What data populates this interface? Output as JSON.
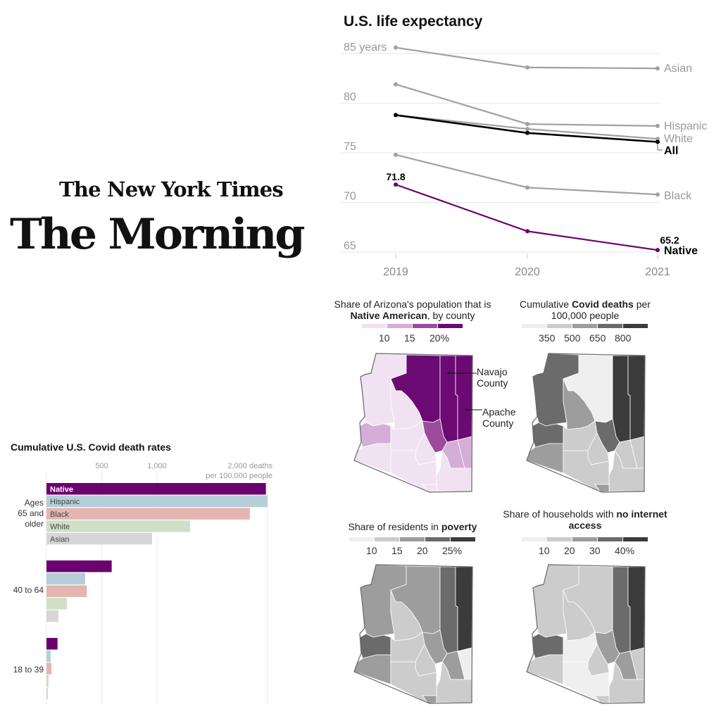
{
  "branding": {
    "masthead": "The New York Times",
    "newsletter": "The Morning"
  },
  "colors": {
    "native": "#6b006f",
    "hispanic": "#b5cfd8",
    "black": "#e5b5b2",
    "white": "#cfe0c6",
    "asian": "#d6d6d6",
    "grey_line": "#a0a0a0",
    "all_line": "#000000"
  },
  "chart_data": [
    {
      "type": "line",
      "title": "U.S. life expectancy",
      "x": [
        2019,
        2020,
        2021
      ],
      "x_tick_labels": [
        "2019",
        "2020",
        "2021"
      ],
      "y_tick_labels": [
        "85 years",
        "80",
        "75",
        "70",
        "65"
      ],
      "y_ticks": [
        85,
        80,
        75,
        70,
        65
      ],
      "ylim": [
        64,
        86
      ],
      "grid": true,
      "series": [
        {
          "name": "Asian",
          "values": [
            85.6,
            83.6,
            83.5
          ]
        },
        {
          "name": "Hispanic",
          "values": [
            81.9,
            77.9,
            77.7
          ]
        },
        {
          "name": "White",
          "values": [
            78.8,
            77.4,
            76.4
          ]
        },
        {
          "name": "All",
          "values": [
            78.8,
            77.0,
            76.1
          ]
        },
        {
          "name": "Black",
          "values": [
            74.8,
            71.5,
            70.8
          ]
        },
        {
          "name": "Native",
          "values": [
            71.8,
            67.1,
            65.2
          ]
        }
      ],
      "annotations": [
        "71.8",
        "65.2"
      ]
    },
    {
      "type": "bar",
      "orientation": "horizontal",
      "title": "Cumulative U.S. Covid death rates",
      "x_tick_labels": [
        "500",
        "1,000",
        "2,000 deaths"
      ],
      "x_unit_label": "per 100,000 people",
      "x_ticks": [
        500,
        1000,
        2000
      ],
      "xlim": [
        0,
        2000
      ],
      "categories": [
        "Ages 65 and older",
        "40 to 64",
        "18 to 39"
      ],
      "series": [
        {
          "name": "Native",
          "values": [
            1985,
            590,
            100
          ]
        },
        {
          "name": "Hispanic",
          "values": [
            2000,
            350,
            38
          ]
        },
        {
          "name": "Black",
          "values": [
            1840,
            365,
            45
          ]
        },
        {
          "name": "White",
          "values": [
            1300,
            185,
            19
          ]
        },
        {
          "name": "Asian",
          "values": [
            955,
            108,
            12
          ]
        }
      ]
    },
    {
      "type": "heatmap",
      "subtype": "choropleth",
      "title_parts": [
        "Share of Arizona's population that is ",
        "Native American",
        ", by county"
      ],
      "legend_labels": [
        "10",
        "15",
        "20%"
      ],
      "legend_colors": [
        "#f1e2f2",
        "#d4aed6",
        "#9b4a9e",
        "#6b0a72"
      ],
      "annotations": [
        "Navajo County",
        "Apache County"
      ],
      "fills": [
        "#f1e2f2",
        "#6b0a72",
        "#6b0a72",
        "#6b0a72",
        "#f1e2f2",
        "#d4aed6",
        "#f1e2f2",
        "#f1e2f2",
        "#9b4a9e",
        "#d4aed6",
        "#d4aed6",
        "#f1e2f2",
        "#f1e2f2",
        "#f1e2f2",
        "#f1e2f2"
      ]
    },
    {
      "type": "heatmap",
      "subtype": "choropleth",
      "title_parts": [
        "Cumulative ",
        "Covid deaths",
        " per 100,000 people"
      ],
      "legend_labels": [
        "350",
        "500",
        "650",
        "800"
      ],
      "legend_colors": [
        "#efefef",
        "#cccccc",
        "#9d9d9d",
        "#6b6b6b",
        "#3b3b3b"
      ],
      "fills": [
        "#6b6b6b",
        "#efefef",
        "#3b3b3b",
        "#3b3b3b",
        "#9d9d9d",
        "#6b6b6b",
        "#9d9d9d",
        "#cccccc",
        "#6b6b6b",
        "#cccccc",
        "#cccccc",
        "#cccccc",
        "#cccccc",
        "#cccccc",
        "#9d9d9d"
      ]
    },
    {
      "type": "heatmap",
      "subtype": "choropleth",
      "title_parts": [
        "Share of residents in ",
        "poverty",
        ""
      ],
      "legend_labels": [
        "10",
        "15",
        "20",
        "25%"
      ],
      "legend_colors": [
        "#efefef",
        "#cccccc",
        "#9d9d9d",
        "#6b6b6b",
        "#3b3b3b"
      ],
      "fills": [
        "#9d9d9d",
        "#9d9d9d",
        "#6b6b6b",
        "#3b3b3b",
        "#cccccc",
        "#6b6b6b",
        "#9d9d9d",
        "#cccccc",
        "#9d9d9d",
        "#9d9d9d",
        "#efefef",
        "#cccccc",
        "#cccccc",
        "#cccccc",
        "#9d9d9d"
      ]
    },
    {
      "type": "heatmap",
      "subtype": "choropleth",
      "title_parts": [
        "Share of households with ",
        "no internet access",
        ""
      ],
      "legend_labels": [
        "10",
        "20",
        "30",
        "40%"
      ],
      "legend_colors": [
        "#efefef",
        "#cccccc",
        "#9d9d9d",
        "#6b6b6b",
        "#3b3b3b"
      ],
      "fills": [
        "#cccccc",
        "#cccccc",
        "#6b6b6b",
        "#3b3b3b",
        "#cccccc",
        "#6b6b6b",
        "#cccccc",
        "#efefef",
        "#9d9d9d",
        "#9d9d9d",
        "#cccccc",
        "#cccccc",
        "#efefef",
        "#cccccc",
        "#cccccc"
      ]
    }
  ]
}
